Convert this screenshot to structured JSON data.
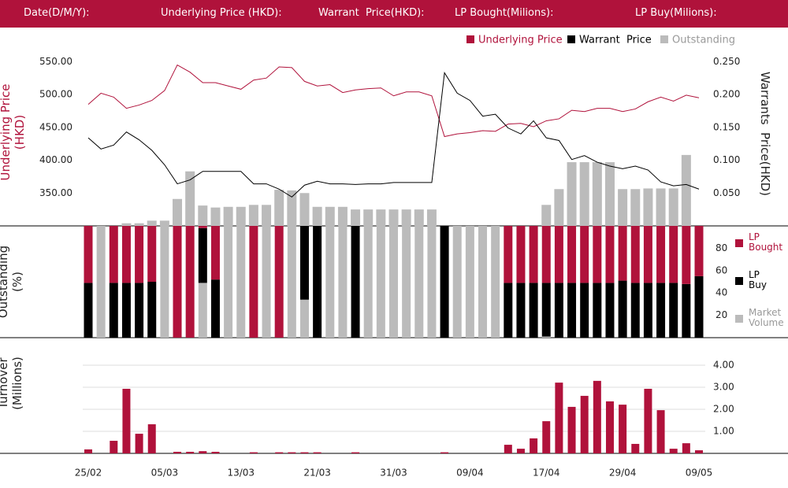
{
  "header": {
    "fields": [
      "Date(D/M/Y):",
      "Underlying Price (HKD):",
      "Warrant  Price(HKD):",
      "LP Bought(Milions):",
      "LP Buy(Milions):"
    ]
  },
  "chart_data": [
    {
      "type": "line",
      "ylabel": "Underlying Price (HKD)",
      "y2label": "Warrants  Price(HKD)",
      "ylim": [
        300,
        560
      ],
      "yticks": [
        {
          "value": 350,
          "label": "350.00"
        },
        {
          "value": 400,
          "label": "400.00"
        },
        {
          "value": 450,
          "label": "450.00"
        },
        {
          "value": 500,
          "label": "500.00"
        },
        {
          "value": 550,
          "label": "550.00"
        }
      ],
      "y2lim": [
        0,
        0.26
      ],
      "y2ticks": [
        {
          "value": 0.05,
          "label": "0.050"
        },
        {
          "value": 0.1,
          "label": "0.100"
        },
        {
          "value": 0.15,
          "label": "0.150"
        },
        {
          "value": 0.2,
          "label": "0.200"
        },
        {
          "value": 0.25,
          "label": "0.250"
        }
      ],
      "series": [
        {
          "name": "Underlying Price",
          "color": "#b0123b",
          "values": [
            485,
            502,
            496,
            479,
            484,
            491,
            506,
            545,
            534,
            518,
            518,
            513,
            508,
            522,
            525,
            542,
            541,
            520,
            513,
            515,
            503,
            507,
            509,
            510,
            498,
            504,
            504,
            498,
            436,
            440,
            442,
            445,
            444,
            455,
            456,
            451,
            460,
            463,
            476,
            474,
            479,
            479,
            474,
            478,
            489,
            496,
            490,
            499,
            495
          ]
        },
        {
          "name": "Warrant  Price",
          "color": "#000000",
          "axis": "y2",
          "values": [
            0.134,
            0.117,
            0.123,
            0.143,
            0.131,
            0.115,
            0.093,
            0.064,
            0.07,
            0.083,
            0.083,
            0.083,
            0.083,
            0.064,
            0.064,
            0.056,
            0.044,
            0.062,
            0.068,
            0.064,
            0.064,
            0.063,
            0.064,
            0.064,
            0.066,
            0.066,
            0.066,
            0.066,
            0.233,
            0.202,
            0.191,
            0.167,
            0.17,
            0.149,
            0.14,
            0.16,
            0.134,
            0.13,
            0.101,
            0.107,
            0.097,
            0.091,
            0.087,
            0.091,
            0.085,
            0.067,
            0.061,
            0.063,
            0.056
          ]
        },
        {
          "name": "Outstanding",
          "color": "#bbbbbb",
          "type": "bar",
          "values": [
            null,
            null,
            null,
            304,
            304,
            308,
            308,
            341,
            383,
            331,
            328,
            329,
            329,
            332,
            332,
            355,
            354,
            350,
            329,
            329,
            329,
            325,
            325,
            325,
            325,
            325,
            325,
            325,
            null,
            null,
            null,
            null,
            null,
            null,
            null,
            null,
            332,
            356,
            397,
            397,
            397,
            397,
            356,
            356,
            357,
            357,
            357,
            408,
            null
          ]
        }
      ]
    },
    {
      "type": "stacked-bar",
      "ylabel": "Outstanding (%)",
      "ylim": [
        0,
        100
      ],
      "yticks": [
        20,
        40,
        60,
        80
      ],
      "series": [
        {
          "name": "LP Bought",
          "color": "#b0123b",
          "values": [
            51,
            0,
            51,
            51,
            51,
            50,
            0,
            100,
            100,
            2,
            48,
            0,
            0,
            100,
            0,
            100,
            0,
            0,
            0,
            0,
            0,
            0,
            0,
            0,
            0,
            0,
            0,
            0,
            0,
            0,
            0,
            0,
            0,
            51,
            51,
            51,
            51,
            51,
            51,
            51,
            51,
            51,
            49,
            51,
            51,
            51,
            51,
            52,
            45
          ]
        },
        {
          "name": "LP Buy",
          "color": "#000000",
          "values": [
            49,
            0,
            49,
            49,
            49,
            50,
            0,
            0,
            0,
            49,
            52,
            0,
            0,
            0,
            0,
            0,
            0,
            66,
            100,
            0,
            0,
            100,
            0,
            0,
            0,
            0,
            0,
            0,
            100,
            0,
            0,
            0,
            0,
            49,
            49,
            49,
            48,
            49,
            49,
            49,
            49,
            49,
            51,
            49,
            49,
            49,
            49,
            48,
            55
          ]
        },
        {
          "name": "Market Volume",
          "color": "#bbbbbb",
          "values": [
            0,
            100,
            0,
            0,
            0,
            0,
            100,
            0,
            0,
            49,
            0,
            100,
            100,
            0,
            100,
            0,
            100,
            34,
            0,
            100,
            100,
            0,
            100,
            100,
            100,
            100,
            100,
            100,
            0,
            100,
            100,
            100,
            100,
            0,
            0,
            0,
            1,
            0,
            0,
            0,
            0,
            0,
            0,
            0,
            0,
            0,
            0,
            0,
            0
          ]
        }
      ]
    },
    {
      "type": "bar",
      "ylabel": "Turnover (Millions)",
      "color": "#b0123b",
      "ylim": [
        0,
        5
      ],
      "grid": true,
      "yticks": [
        {
          "value": 1,
          "label": "1.00"
        },
        {
          "value": 2,
          "label": "2.00"
        },
        {
          "value": 3,
          "label": "3.00"
        },
        {
          "value": 4,
          "label": "4.00"
        }
      ],
      "categories": [
        "25/02",
        null,
        null,
        null,
        null,
        null,
        "05/03",
        null,
        null,
        null,
        null,
        null,
        "13/03",
        null,
        null,
        null,
        null,
        null,
        "21/03",
        null,
        null,
        null,
        null,
        null,
        "31/03",
        null,
        null,
        null,
        null,
        null,
        "09/04",
        null,
        null,
        null,
        null,
        null,
        "17/04",
        null,
        null,
        null,
        null,
        null,
        "29/04",
        null,
        null,
        null,
        null,
        null,
        "09/05"
      ],
      "values": [
        0.18,
        0,
        0.57,
        2.93,
        0.89,
        1.32,
        0,
        0.07,
        0.07,
        0.1,
        0.07,
        0,
        0,
        0.05,
        0,
        0.05,
        0.05,
        0.05,
        0.05,
        0,
        0,
        0.05,
        0,
        0,
        0,
        0,
        0,
        0,
        0.05,
        0,
        0,
        0,
        0,
        0.39,
        0.21,
        0.68,
        1.46,
        3.21,
        2.11,
        2.61,
        3.29,
        2.36,
        2.21,
        0.43,
        2.93,
        1.96,
        0.21,
        0.46,
        0.14
      ]
    }
  ]
}
